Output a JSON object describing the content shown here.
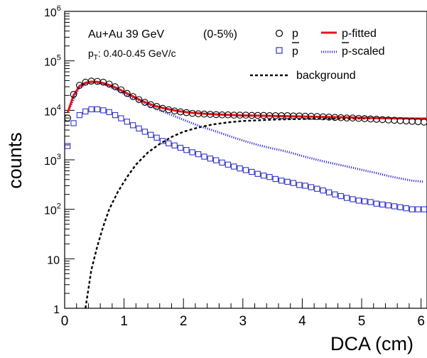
{
  "chart_data": {
    "type": "scatter",
    "xlabel": "DCA (cm)",
    "ylabel": "counts",
    "xlim": [
      0,
      6.1
    ],
    "ylim": [
      1,
      1000000
    ],
    "yscale": "log",
    "x_ticks": [
      "0",
      "1",
      "2",
      "3",
      "4",
      "5",
      "6"
    ],
    "x_tick_values": [
      0,
      1,
      2,
      3,
      4,
      5,
      6
    ],
    "y_ticks": [
      {
        "value": 1,
        "base": "1",
        "exp": ""
      },
      {
        "value": 10,
        "base": "10",
        "exp": ""
      },
      {
        "value": 100,
        "base": "10",
        "exp": "2"
      },
      {
        "value": 1000,
        "base": "10",
        "exp": "3"
      },
      {
        "value": 10000,
        "base": "10",
        "exp": "4"
      },
      {
        "value": 100000,
        "base": "10",
        "exp": "5"
      },
      {
        "value": 1000000,
        "base": "10",
        "exp": "6"
      }
    ],
    "annotations": {
      "system": "Au+Au 39 GeV",
      "centrality": "(0-5%)",
      "pt_label": "p",
      "pt_sub": "T",
      "pt_range": ": 0.40-0.45 GeV/c"
    },
    "legend": [
      {
        "label": "p",
        "marker": "open-circle",
        "color": "#000000"
      },
      {
        "label": "p",
        "overline": true,
        "marker": "open-square",
        "color": "#3333cc"
      },
      {
        "label": "p-fitted",
        "line": "solid",
        "color": "#e8141c"
      },
      {
        "label": "p",
        "suffix": "-scaled",
        "overline": true,
        "line": "dotted",
        "color": "#3333cc"
      },
      {
        "label": "background",
        "line": "dashed",
        "color": "#000000"
      }
    ],
    "series": [
      {
        "name": "p",
        "marker": "open-circle",
        "color": "#000000",
        "x": [
          0.05,
          0.15,
          0.25,
          0.35,
          0.45,
          0.55,
          0.65,
          0.75,
          0.85,
          0.95,
          1.05,
          1.15,
          1.25,
          1.35,
          1.45,
          1.55,
          1.65,
          1.75,
          1.85,
          1.95,
          2.05,
          2.15,
          2.25,
          2.35,
          2.45,
          2.55,
          2.65,
          2.75,
          2.85,
          2.95,
          3.05,
          3.15,
          3.25,
          3.35,
          3.45,
          3.55,
          3.65,
          3.75,
          3.85,
          3.95,
          4.05,
          4.15,
          4.25,
          4.35,
          4.45,
          4.55,
          4.65,
          4.75,
          4.85,
          4.95,
          5.05,
          5.15,
          5.25,
          5.35,
          5.45,
          5.55,
          5.65,
          5.75,
          5.85,
          5.95,
          6.05
        ],
        "y": [
          7000,
          21000,
          32000,
          37000,
          39000,
          38500,
          37000,
          34000,
          30000,
          26000,
          22000,
          19000,
          16500,
          14500,
          13000,
          12000,
          11000,
          10300,
          9700,
          9300,
          9000,
          8700,
          8500,
          8400,
          8300,
          8200,
          8100,
          8100,
          8000,
          8000,
          8000,
          7900,
          7900,
          7900,
          7800,
          7800,
          7800,
          7800,
          7700,
          7700,
          7600,
          7600,
          7500,
          7400,
          7300,
          7200,
          7100,
          7000,
          7000,
          6900,
          6800,
          6700,
          6600,
          6500,
          6400,
          6300,
          6200,
          6100,
          6000,
          5900,
          5800
        ]
      },
      {
        "name": "p",
        "overline": true,
        "marker": "open-square",
        "color": "#3333cc",
        "x": [
          0.05,
          0.15,
          0.25,
          0.35,
          0.45,
          0.55,
          0.65,
          0.75,
          0.85,
          0.95,
          1.05,
          1.15,
          1.25,
          1.35,
          1.45,
          1.55,
          1.65,
          1.75,
          1.85,
          1.95,
          2.05,
          2.15,
          2.25,
          2.35,
          2.45,
          2.55,
          2.65,
          2.75,
          2.85,
          2.95,
          3.05,
          3.15,
          3.25,
          3.35,
          3.45,
          3.55,
          3.65,
          3.75,
          3.85,
          3.95,
          4.05,
          4.15,
          4.25,
          4.35,
          4.45,
          4.55,
          4.65,
          4.75,
          4.85,
          4.95,
          5.05,
          5.15,
          5.25,
          5.35,
          5.45,
          5.55,
          5.65,
          5.75,
          5.85,
          5.95,
          6.05
        ],
        "y": [
          1900,
          5500,
          8000,
          9500,
          10500,
          10500,
          10000,
          9200,
          8000,
          6900,
          5900,
          5000,
          4300,
          3700,
          3200,
          2800,
          2400,
          2150,
          1950,
          1750,
          1580,
          1420,
          1300,
          1160,
          1060,
          980,
          880,
          800,
          730,
          670,
          620,
          570,
          520,
          480,
          450,
          410,
          380,
          360,
          340,
          310,
          300,
          280,
          260,
          240,
          220,
          200,
          185,
          170,
          160,
          150,
          145,
          140,
          130,
          125,
          120,
          115,
          110,
          105,
          100,
          100,
          100
        ]
      },
      {
        "name": "p",
        "suffix": "-scaled",
        "overline": true,
        "line": "dotted",
        "color": "#3333cc",
        "x": [
          0.05,
          0.25,
          0.45,
          0.65,
          0.85,
          1.05,
          1.25,
          1.45,
          1.65,
          1.85,
          2.05,
          2.25,
          2.45,
          2.65,
          2.85,
          3.05,
          3.25,
          3.45,
          3.65,
          3.85,
          4.05,
          4.25,
          4.45,
          4.65,
          4.85,
          5.05,
          5.25,
          5.45,
          5.65,
          5.85,
          6.05
        ],
        "y": [
          9000,
          30000,
          37000,
          34000,
          27000,
          20000,
          15500,
          12000,
          9500,
          7600,
          6100,
          4900,
          4100,
          3400,
          2800,
          2350,
          2000,
          1750,
          1550,
          1350,
          1150,
          1000,
          880,
          780,
          690,
          610,
          540,
          470,
          420,
          380,
          360
        ]
      },
      {
        "name": "p-fitted",
        "line": "solid",
        "color": "#e8141c",
        "x": [
          0.05,
          0.15,
          0.25,
          0.35,
          0.45,
          0.55,
          0.65,
          0.75,
          0.85,
          0.95,
          1.1,
          1.3,
          1.5,
          1.7,
          1.9,
          2.1,
          2.3,
          2.6,
          3.0,
          3.5,
          4.0,
          4.5,
          5.0,
          5.5,
          6.1
        ],
        "y": [
          9000,
          20000,
          31000,
          36000,
          38000,
          37500,
          35500,
          32500,
          29000,
          25500,
          20500,
          15500,
          12500,
          10800,
          9700,
          9000,
          8600,
          8200,
          7900,
          7700,
          7500,
          7300,
          7100,
          6900,
          6800
        ]
      },
      {
        "name": "background",
        "line": "dashed",
        "color": "#000000",
        "x": [
          0.35,
          0.45,
          0.55,
          0.65,
          0.75,
          0.9,
          1.05,
          1.2,
          1.4,
          1.6,
          1.8,
          2.0,
          2.25,
          2.5,
          2.75,
          3.0,
          3.5,
          4.0,
          4.5,
          5.0,
          5.5,
          6.1
        ],
        "y": [
          1,
          6,
          18,
          45,
          100,
          230,
          450,
          800,
          1400,
          2100,
          2900,
          3700,
          4500,
          5200,
          5700,
          6100,
          6500,
          6700,
          6800,
          6850,
          6850,
          6800
        ]
      }
    ]
  }
}
